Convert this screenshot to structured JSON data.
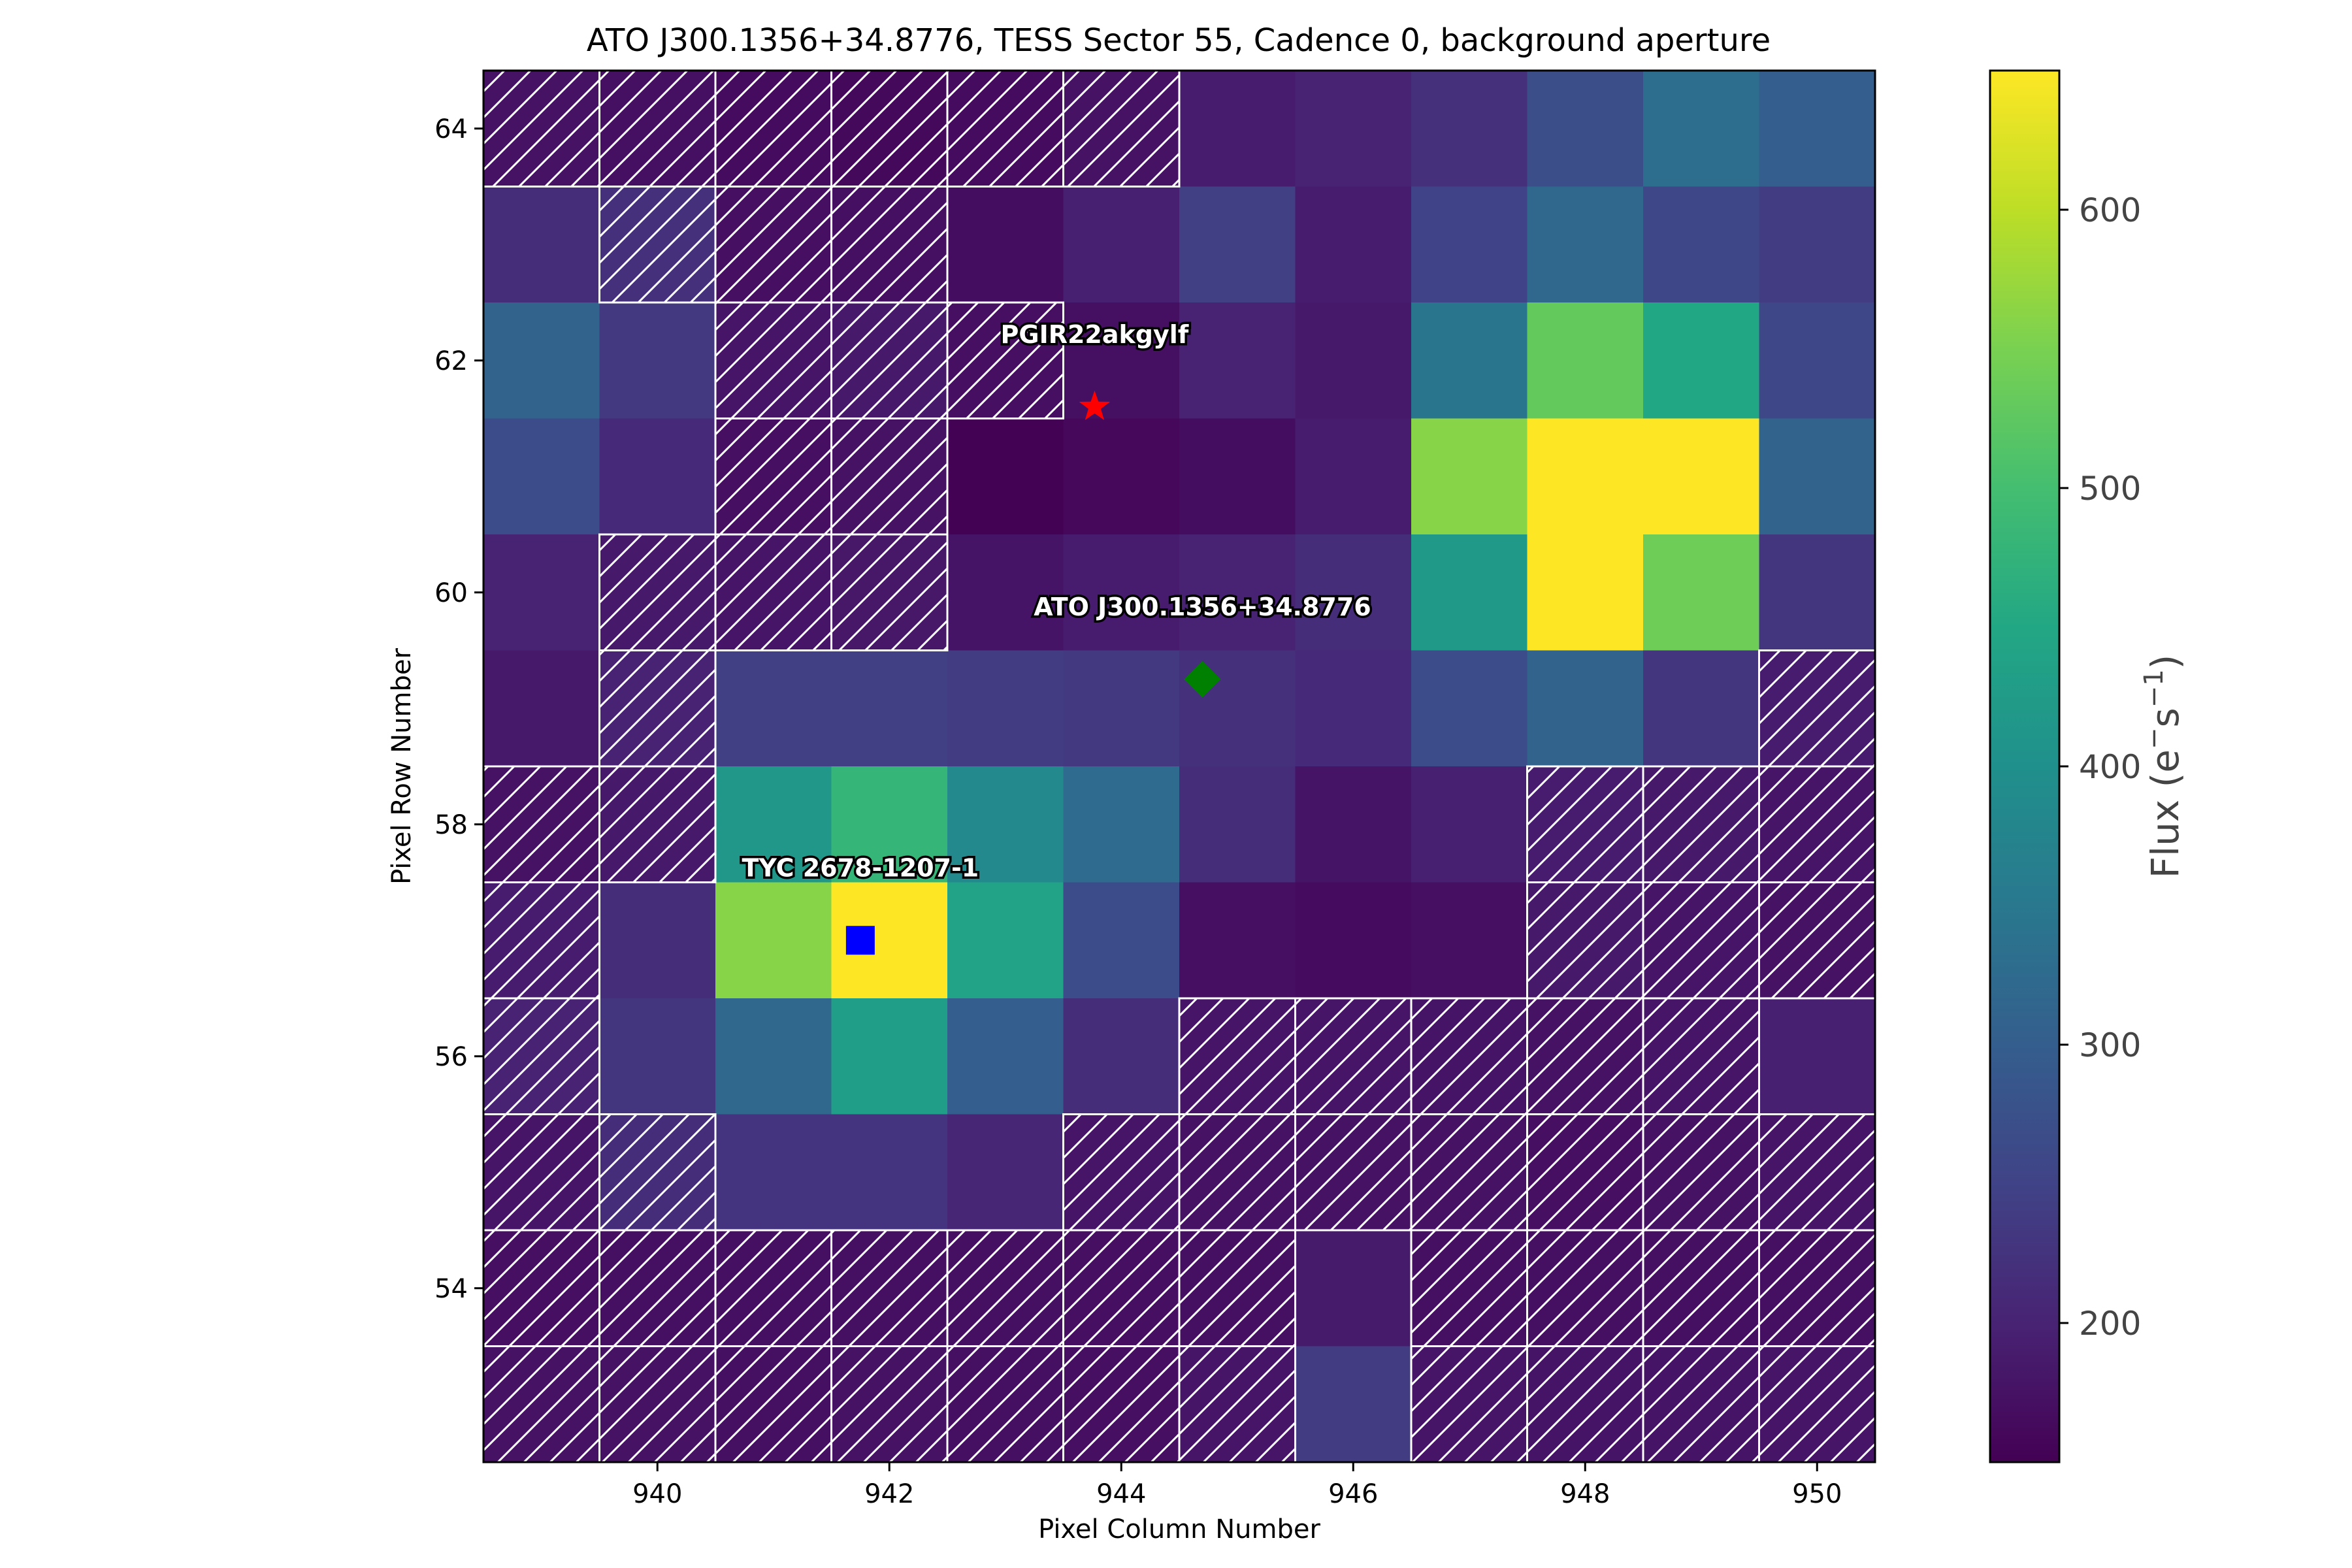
{
  "chart_data": {
    "type": "heatmap",
    "title": "ATO J300.1356+34.8776, TESS Sector 55, Cadence 0, background aperture",
    "xlabel": "Pixel Column Number",
    "ylabel": "Pixel Row Number",
    "xlim": [
      938.5,
      950.5
    ],
    "ylim": [
      52.5,
      64.5
    ],
    "xticks": [
      940,
      942,
      944,
      946,
      948,
      950
    ],
    "yticks": [
      54,
      56,
      58,
      60,
      62,
      64
    ],
    "columns": [
      939,
      940,
      941,
      942,
      943,
      944,
      945,
      946,
      947,
      948,
      949,
      950
    ],
    "rows": [
      53,
      54,
      55,
      56,
      57,
      58,
      59,
      60,
      61,
      62,
      63,
      64
    ],
    "flux_top_to_bottom": [
      [
        175,
        172,
        165,
        162,
        165,
        175,
        190,
        200,
        220,
        270,
        330,
        300
      ],
      [
        215,
        220,
        170,
        172,
        168,
        195,
        245,
        190,
        250,
        320,
        260,
        240
      ],
      [
        310,
        235,
        180,
        185,
        170,
        172,
        200,
        185,
        345,
        530,
        450,
        260
      ],
      [
        265,
        210,
        170,
        175,
        152,
        160,
        168,
        190,
        560,
        650,
        650,
        310
      ],
      [
        200,
        185,
        180,
        182,
        178,
        190,
        200,
        215,
        420,
        650,
        540,
        230
      ],
      [
        185,
        200,
        245,
        245,
        240,
        235,
        220,
        210,
        265,
        310,
        230,
        190
      ],
      [
        175,
        185,
        415,
        480,
        385,
        325,
        215,
        178,
        195,
        190,
        185,
        180
      ],
      [
        190,
        215,
        560,
        650,
        440,
        265,
        170,
        165,
        170,
        185,
        180,
        175
      ],
      [
        200,
        230,
        320,
        430,
        300,
        215,
        180,
        180,
        178,
        175,
        180,
        195
      ],
      [
        180,
        215,
        225,
        225,
        205,
        180,
        175,
        175,
        175,
        170,
        175,
        180
      ],
      [
        170,
        172,
        172,
        172,
        172,
        170,
        172,
        188,
        172,
        172,
        172,
        172
      ],
      [
        175,
        175,
        172,
        175,
        172,
        170,
        180,
        240,
        180,
        178,
        178,
        180
      ]
    ],
    "background_aperture_top_to_bottom": [
      [
        1,
        1,
        1,
        1,
        1,
        1,
        0,
        0,
        0,
        0,
        0,
        0
      ],
      [
        0,
        1,
        1,
        1,
        0,
        0,
        0,
        0,
        0,
        0,
        0,
        0
      ],
      [
        0,
        0,
        1,
        1,
        1,
        0,
        0,
        0,
        0,
        0,
        0,
        0
      ],
      [
        0,
        0,
        1,
        1,
        0,
        0,
        0,
        0,
        0,
        0,
        0,
        0
      ],
      [
        0,
        1,
        1,
        1,
        0,
        0,
        0,
        0,
        0,
        0,
        0,
        0
      ],
      [
        0,
        1,
        0,
        0,
        0,
        0,
        0,
        0,
        0,
        0,
        0,
        1
      ],
      [
        1,
        1,
        0,
        0,
        0,
        0,
        0,
        0,
        0,
        1,
        1,
        1
      ],
      [
        1,
        0,
        0,
        0,
        0,
        0,
        0,
        0,
        0,
        1,
        1,
        1
      ],
      [
        1,
        0,
        0,
        0,
        0,
        0,
        1,
        1,
        1,
        1,
        1,
        0
      ],
      [
        1,
        1,
        0,
        0,
        0,
        1,
        1,
        1,
        1,
        1,
        1,
        1
      ],
      [
        1,
        1,
        1,
        1,
        1,
        1,
        1,
        0,
        1,
        1,
        1,
        1
      ],
      [
        1,
        1,
        1,
        1,
        1,
        1,
        1,
        0,
        1,
        1,
        1,
        1
      ]
    ],
    "sources": [
      {
        "name": "PGIR22akgylf",
        "x": 943.77,
        "y": 61.6,
        "marker": "star",
        "color": "#ff0000"
      },
      {
        "name": "ATO J300.1356+34.8776",
        "x": 944.7,
        "y": 59.25,
        "marker": "diamond",
        "color": "#008000"
      },
      {
        "name": "TYC 2678-1207-1",
        "x": 941.75,
        "y": 57.0,
        "marker": "square",
        "color": "#0000ff"
      }
    ],
    "colorbar": {
      "label": "Flux (e⁻s⁻¹)",
      "label_base": "Flux (e",
      "label_sup1": "−",
      "label_mid": "s",
      "label_sup2": "−1",
      "label_end": ")",
      "min": 150,
      "max": 650,
      "ticks": [
        200,
        300,
        400,
        500,
        600
      ],
      "colormap": "viridis"
    },
    "grid": false
  }
}
